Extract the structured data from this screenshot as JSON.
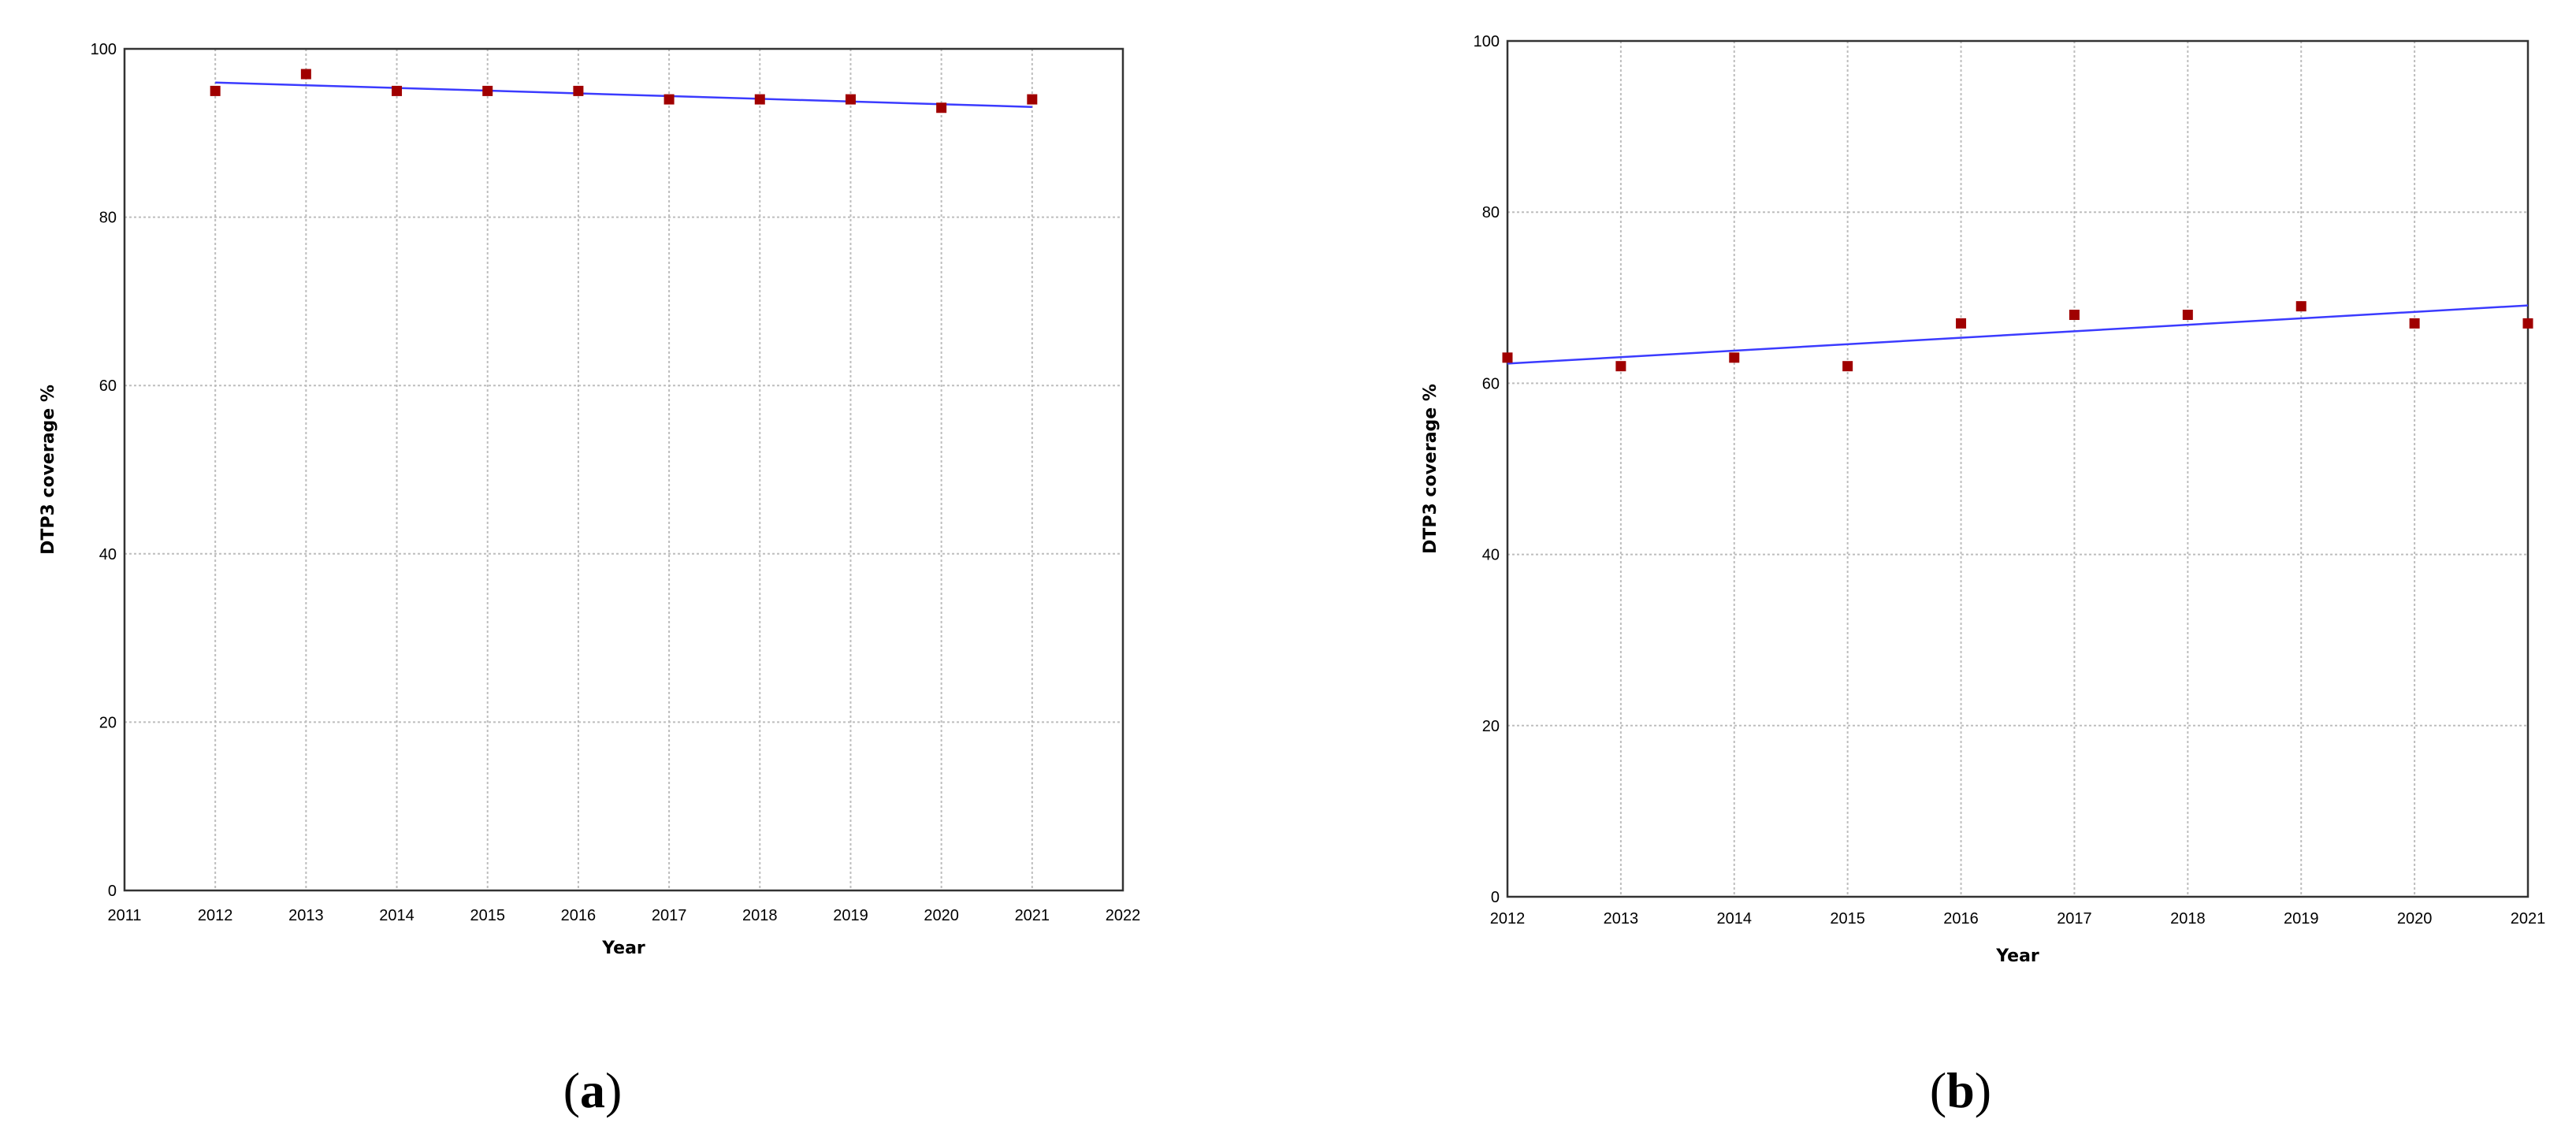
{
  "panels": [
    {
      "label": "(a)",
      "letter": "a"
    },
    {
      "label": "(b)",
      "letter": "b"
    }
  ],
  "colors": {
    "point": "#a00000",
    "trend": "#3b3bff",
    "grid": "#bdbdbd",
    "frame": "#333333"
  },
  "chart_data": [
    {
      "type": "scatter",
      "title": "",
      "xlabel": "Year",
      "ylabel": "DTP3 coverage %",
      "xlim": [
        2011,
        2022
      ],
      "ylim": [
        0,
        100
      ],
      "xticks": [
        2011,
        2012,
        2013,
        2014,
        2015,
        2016,
        2017,
        2018,
        2019,
        2020,
        2021,
        2022
      ],
      "yticks": [
        0,
        20,
        40,
        60,
        80,
        100
      ],
      "grid": true,
      "series": [
        {
          "x": [
            2012,
            2013,
            2014,
            2015,
            2016,
            2017,
            2018,
            2019,
            2020,
            2021
          ],
          "y": [
            95,
            97,
            95,
            95,
            95,
            94,
            94,
            94,
            93,
            94
          ]
        }
      ],
      "trendline": {
        "x": [
          2012,
          2021
        ],
        "y": [
          96.0,
          93.1
        ]
      }
    },
    {
      "type": "scatter",
      "title": "",
      "xlabel": "Year",
      "ylabel": "DTP3 coverage %",
      "xlim": [
        2012,
        2021
      ],
      "ylim": [
        0,
        100
      ],
      "xticks": [
        2012,
        2013,
        2014,
        2015,
        2016,
        2017,
        2018,
        2019,
        2020,
        2021
      ],
      "yticks": [
        0,
        20,
        40,
        60,
        80,
        100
      ],
      "grid": true,
      "series": [
        {
          "x": [
            2012,
            2013,
            2014,
            2015,
            2016,
            2017,
            2018,
            2019,
            2020,
            2021
          ],
          "y": [
            63,
            62,
            63,
            62,
            67,
            68,
            68,
            69,
            67,
            67
          ]
        }
      ],
      "trendline": {
        "x": [
          2012,
          2021
        ],
        "y": [
          62.3,
          69.1
        ]
      }
    }
  ]
}
